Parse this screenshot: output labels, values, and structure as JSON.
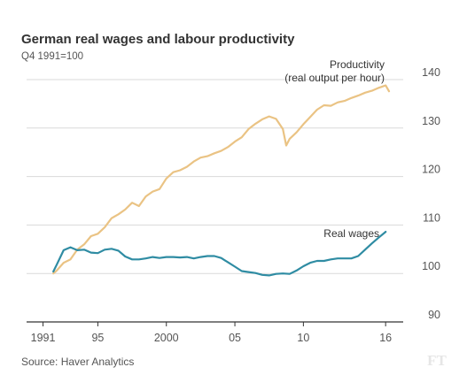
{
  "chart_data": {
    "type": "line",
    "title": "German real wages and labour productivity",
    "subtitle": "Q4 1991=100",
    "xlabel": "",
    "ylabel": "",
    "xlim": [
      1989.8,
      2017.8
    ],
    "ylim": [
      90,
      140
    ],
    "y_ticks": [
      90,
      100,
      110,
      120,
      130,
      140
    ],
    "x_ticks": [
      {
        "value": 1991,
        "label": "1991"
      },
      {
        "value": 1995,
        "label": "95"
      },
      {
        "value": 2000,
        "label": "2000"
      },
      {
        "value": 2005,
        "label": "05"
      },
      {
        "value": 2010,
        "label": "10"
      },
      {
        "value": 2016,
        "label": "16"
      }
    ],
    "grid": "horizontal",
    "series": [
      {
        "name": "Productivity",
        "label_lines": [
          "Productivity",
          "(real output per hour)"
        ],
        "color": "#eac384",
        "x": [
          1991.75,
          1992.0,
          1992.5,
          1993.0,
          1993.5,
          1994.0,
          1994.5,
          1995.0,
          1995.5,
          1996.0,
          1996.5,
          1997.0,
          1997.5,
          1998.0,
          1998.5,
          1999.0,
          1999.5,
          2000.0,
          2000.5,
          2001.0,
          2001.5,
          2002.0,
          2002.5,
          2003.0,
          2003.5,
          2004.0,
          2004.5,
          2005.0,
          2005.5,
          2006.0,
          2006.5,
          2007.0,
          2007.5,
          2008.0,
          2008.5,
          2008.75,
          2009.0,
          2009.5,
          2010.0,
          2010.5,
          2011.0,
          2011.5,
          2012.0,
          2012.5,
          2013.0,
          2013.5,
          2014.0,
          2014.5,
          2015.0,
          2015.5,
          2016.0,
          2016.25
        ],
        "values": [
          100.0,
          100.6,
          102.2,
          102.9,
          104.9,
          106.0,
          107.7,
          108.2,
          109.5,
          111.4,
          112.2,
          113.2,
          114.6,
          113.9,
          115.9,
          116.9,
          117.4,
          119.6,
          120.9,
          121.3,
          122.0,
          123.1,
          123.9,
          124.2,
          124.8,
          125.3,
          126.1,
          127.2,
          128.1,
          129.8,
          130.9,
          131.8,
          132.4,
          131.9,
          129.8,
          126.4,
          127.8,
          129.1,
          130.8,
          132.3,
          133.8,
          134.7,
          134.6,
          135.3,
          135.6,
          136.2,
          136.7,
          137.3,
          137.7,
          138.3,
          138.8,
          137.6
        ]
      },
      {
        "name": "Real wages",
        "label_lines": [
          "Real wages"
        ],
        "color": "#2f8ca3",
        "x": [
          1991.75,
          1992.0,
          1992.5,
          1993.0,
          1993.5,
          1994.0,
          1994.5,
          1995.0,
          1995.5,
          1996.0,
          1996.5,
          1997.0,
          1997.5,
          1998.0,
          1998.5,
          1999.0,
          1999.5,
          2000.0,
          2000.5,
          2001.0,
          2001.5,
          2002.0,
          2002.5,
          2003.0,
          2003.5,
          2004.0,
          2004.5,
          2005.0,
          2005.5,
          2006.0,
          2006.5,
          2007.0,
          2007.5,
          2008.0,
          2008.5,
          2009.0,
          2009.5,
          2010.0,
          2010.5,
          2011.0,
          2011.5,
          2012.0,
          2012.5,
          2013.0,
          2013.5,
          2014.0,
          2014.5,
          2015.0,
          2015.5,
          2016.0
        ],
        "values": [
          100.4,
          101.8,
          104.8,
          105.4,
          104.8,
          104.9,
          104.3,
          104.2,
          104.9,
          105.1,
          104.7,
          103.5,
          102.9,
          102.9,
          103.1,
          103.4,
          103.2,
          103.4,
          103.4,
          103.3,
          103.4,
          103.1,
          103.4,
          103.6,
          103.6,
          103.2,
          102.3,
          101.4,
          100.5,
          100.3,
          100.1,
          99.7,
          99.6,
          99.9,
          100.0,
          99.9,
          100.6,
          101.5,
          102.2,
          102.6,
          102.6,
          102.9,
          103.1,
          103.1,
          103.1,
          103.6,
          104.9,
          106.2,
          107.4,
          108.6
        ]
      }
    ]
  },
  "source": "Source: Haver Analytics",
  "logo": "FT"
}
